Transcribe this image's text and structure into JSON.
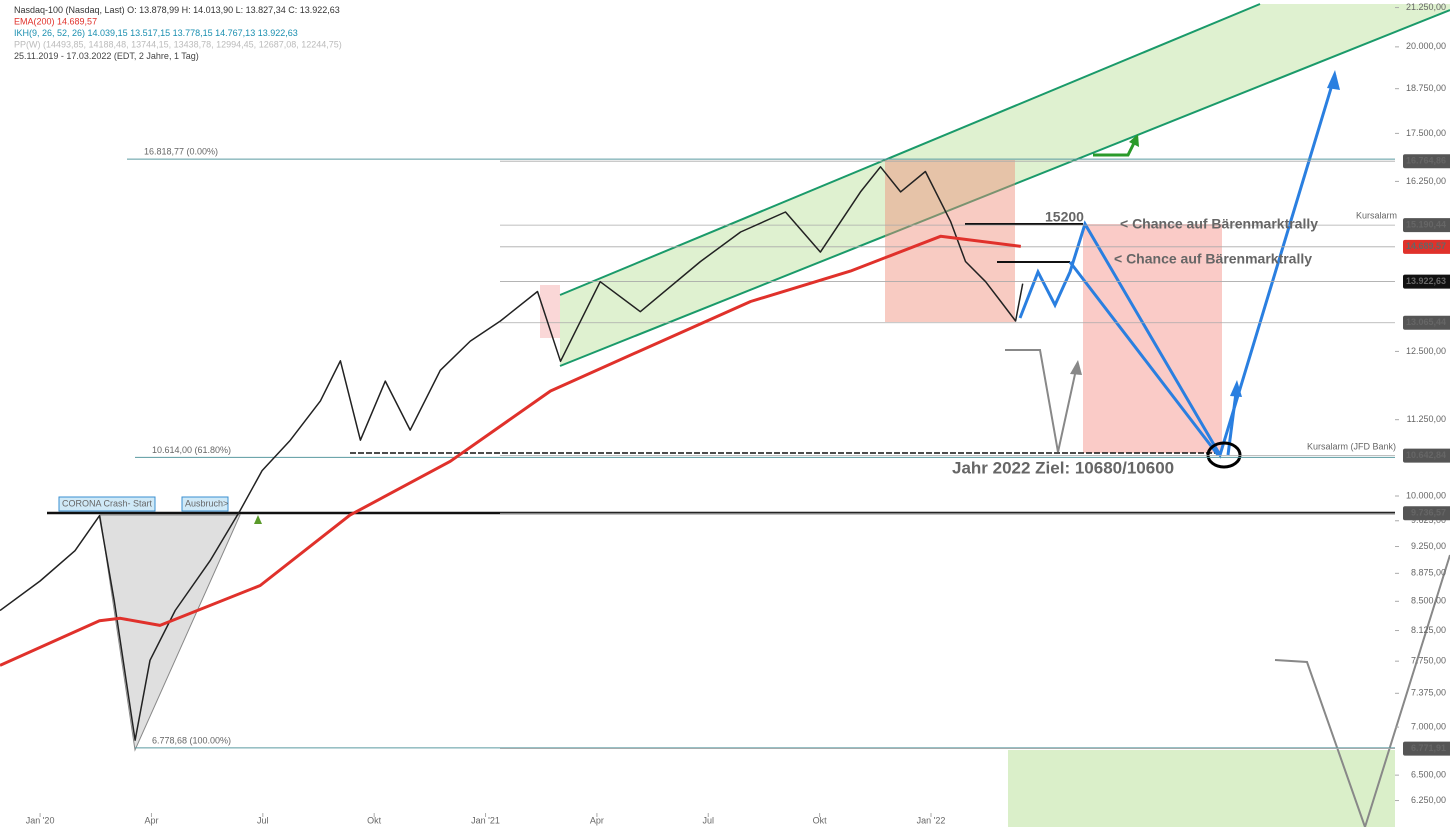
{
  "chart_data": {
    "type": "line",
    "log_scale": true,
    "legend_text": [
      "O: 13.878,99  H: 14.013,90  L: 13.827,34  C: 13.922,63",
      "14.689,57",
      "IKH(9, 26, 52, 26)  14.039,15  13.517,15  13.778,15  14.767,13  13.922,63",
      "PP(W)  (14493,85, 14188,48, 13744,15, 13438,78, 12994,45, 12687,08, 12244,75)",
      "25.11.2019 - 17.03.2022  (EDT, 2 Jahre, 1 Tag)"
    ],
    "series": [
      {
        "name": "Nasdaq-100 (Nasdaq, Last)",
        "color": "#222222",
        "x": [
          -1.08,
          0,
          0.94,
          1.6,
          2.0,
          2.56,
          2.96,
          3.64,
          4.58,
          5.39,
          5.98,
          6.74,
          7.55,
          8.09,
          8.63,
          9.3,
          9.97,
          10.78,
          11.59,
          12.4,
          13.4,
          14.02,
          15.09,
          16.17,
          17.79,
          18.87,
          20.08,
          21.02,
          22.1,
          22.64,
          23.18,
          23.85,
          24.53,
          24.93,
          25.47,
          25.88,
          26.28,
          26.47
        ],
        "values": [
          8380,
          8770,
          9190,
          9700,
          8500,
          6860,
          7760,
          8380,
          9050,
          9780,
          10400,
          10900,
          11580,
          12320,
          10900,
          11940,
          11070,
          12140,
          12700,
          13100,
          13710,
          12310,
          13920,
          13290,
          14360,
          15030,
          15500,
          14570,
          15990,
          16620,
          15990,
          16500,
          15270,
          14360,
          13920,
          13500,
          13100,
          13880
        ]
      },
      {
        "name": "EMA(200)",
        "color": "#e0312b",
        "x": [
          -1.08,
          1.6,
          2.16,
          3.23,
          5.93,
          8.35,
          11.05,
          13.75,
          16.44,
          19.14,
          21.83,
          24.26,
          26.42
        ],
        "values": [
          7700,
          8250,
          8280,
          8190,
          8710,
          9710,
          10550,
          11760,
          12600,
          13500,
          14150,
          14930,
          14700
        ]
      }
    ],
    "xlim": [
      -1.08,
      36.5
    ],
    "xticks": [
      {
        "value": 0,
        "label": "Jan '20"
      },
      {
        "value": 3,
        "label": "Apr"
      },
      {
        "value": 6,
        "label": "Jul"
      },
      {
        "value": 9,
        "label": "Okt"
      },
      {
        "value": 12,
        "label": "Jan '21"
      },
      {
        "value": 15,
        "label": "Apr"
      },
      {
        "value": 18,
        "label": "Jul"
      },
      {
        "value": 21,
        "label": "Okt"
      },
      {
        "value": 24,
        "label": "Jan '22"
      }
    ],
    "ylim": [
      6000,
      21500
    ],
    "yticks": [
      {
        "value": 21250,
        "label": "21.250,00"
      },
      {
        "value": 20000,
        "label": "20.000,00"
      },
      {
        "value": 18750,
        "label": "18.750,00"
      },
      {
        "value": 17500,
        "label": "17.500,00"
      },
      {
        "value": 16250,
        "label": "16.250,00"
      },
      {
        "value": 12500,
        "label": "12.500,00"
      },
      {
        "value": 11250,
        "label": "11.250,00"
      },
      {
        "value": 10000,
        "label": "10.000,00"
      },
      {
        "value": 9625,
        "label": "9.625,00"
      },
      {
        "value": 9250,
        "label": "9.250,00"
      },
      {
        "value": 8875,
        "label": "8.875,00"
      },
      {
        "value": 8500,
        "label": "8.500,00"
      },
      {
        "value": 8125,
        "label": "8.125,00"
      },
      {
        "value": 7750,
        "label": "7.750,00"
      },
      {
        "value": 7375,
        "label": "7.375,00"
      },
      {
        "value": 7000,
        "label": "7.000,00"
      },
      {
        "value": 6500,
        "label": "6.500,00"
      },
      {
        "value": 6250,
        "label": "6.250,00"
      }
    ],
    "levels": [
      {
        "value": 16764.86,
        "label": "16.764,86",
        "color": "#555555"
      },
      {
        "value": 15190.44,
        "label": "15.190,44",
        "color": "#555555"
      },
      {
        "value": 14689.57,
        "label": "14.689,57",
        "color": "#e0312b"
      },
      {
        "value": 13922.63,
        "label": "13.922,63",
        "color": "#111111"
      },
      {
        "value": 13065.44,
        "label": "13.065,44",
        "color": "#555555"
      },
      {
        "value": 10642.84,
        "label": "10.642,84",
        "color": "#555555"
      },
      {
        "value": 9736.57,
        "label": "9.736,57",
        "color": "#555555"
      },
      {
        "value": 6771.91,
        "label": "6.771,91",
        "color": "#555555"
      }
    ],
    "fib": [
      {
        "value": 16818.77,
        "label": "16.818,77 (0.00%)"
      },
      {
        "value": 10614,
        "label": "10.614,00 (61.80%)"
      },
      {
        "value": 6778.68,
        "label": "6.778,68 (100.00%)"
      }
    ],
    "annotations": [
      "Kursalarm",
      "Kursalarm (JFD Bank)",
      "CORONA Crash- Start",
      "Ausbruch>",
      "15200",
      "< Chance auf Bärenmarktrally",
      "< Chance auf Bärenmarktrally",
      "Jahr 2022 Ziel: 10680/10600"
    ]
  }
}
